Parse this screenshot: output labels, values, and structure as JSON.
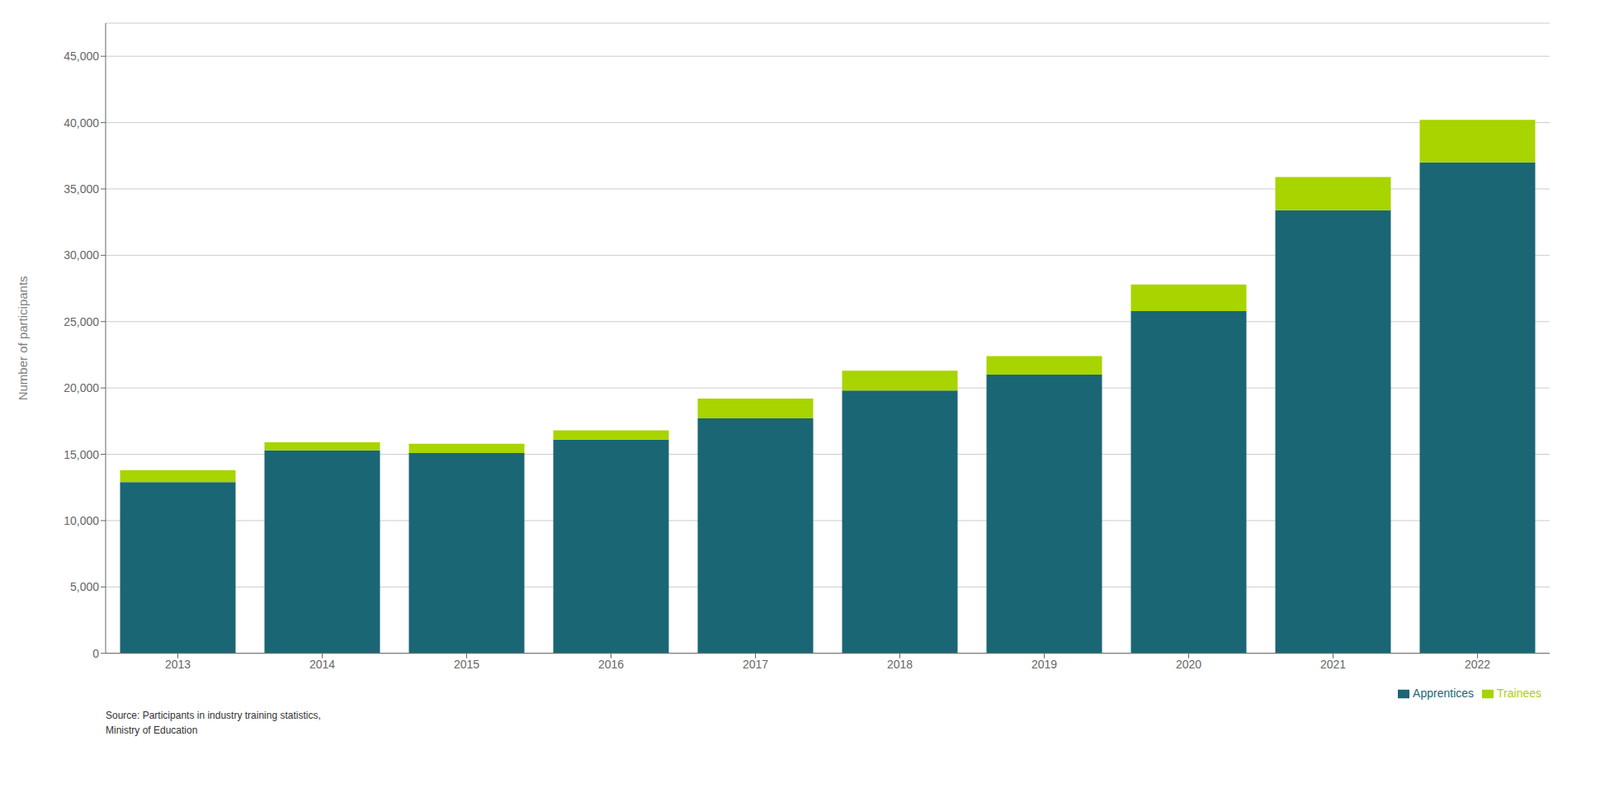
{
  "chart_data": {
    "type": "bar",
    "stacked": true,
    "categories": [
      "2013",
      "2014",
      "2015",
      "2016",
      "2017",
      "2018",
      "2019",
      "2020",
      "2021",
      "2022"
    ],
    "series": [
      {
        "name": "Apprentices",
        "color": "#1a6674",
        "values": [
          12900,
          15300,
          15100,
          16100,
          17700,
          19800,
          21000,
          25800,
          33400,
          37000
        ]
      },
      {
        "name": "Trainees",
        "color": "#a8d400",
        "values": [
          900,
          600,
          700,
          700,
          1500,
          1500,
          1400,
          2000,
          2500,
          3200
        ]
      }
    ],
    "ylabel": "Number of participants",
    "ylim": [
      0,
      47500
    ],
    "yticks": [
      0,
      {
        "value": 5000,
        "label": "5,000"
      },
      {
        "value": 10000,
        "label": "10,000"
      },
      {
        "value": 15000,
        "label": "15,000"
      },
      {
        "value": 20000,
        "label": "20,000"
      },
      {
        "value": 25000,
        "label": "25,000"
      },
      {
        "value": 30000,
        "label": "30,000"
      },
      {
        "value": 35000,
        "label": "35,000"
      },
      {
        "value": 40000,
        "label": "40,000"
      },
      {
        "value": 45000,
        "label": "45,000"
      }
    ],
    "grid": true,
    "legend": "lower right",
    "annotations": [
      "Source: Participants in industry training statistics,",
      "Ministry of Education"
    ]
  }
}
